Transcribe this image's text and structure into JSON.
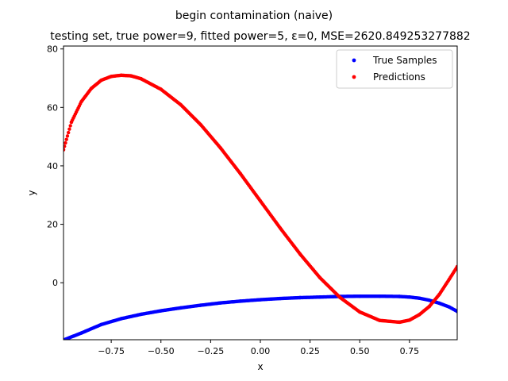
{
  "chart_data": {
    "type": "scatter",
    "suptitle": "begin contamination (naive)",
    "title": "testing set, true power=9, fitted power=5, ε=0, MSE=2620.849253277882",
    "xlabel": "x",
    "ylabel": "y",
    "xlim": [
      -0.99,
      0.99
    ],
    "ylim": [
      -19.5,
      81
    ],
    "xticks": [
      -0.75,
      -0.5,
      -0.25,
      0.0,
      0.25,
      0.5,
      0.75
    ],
    "xtick_labels": [
      "−0.75",
      "−0.50",
      "−0.25",
      "0.00",
      "0.25",
      "0.50",
      "0.75"
    ],
    "yticks": [
      0,
      20,
      40,
      60,
      80
    ],
    "ytick_labels": [
      "0",
      "20",
      "40",
      "60",
      "80"
    ],
    "grid": false,
    "legend_position": "top-right",
    "series": [
      {
        "name": "True Samples",
        "color": "#0000ff",
        "points": [
          [
            -0.99,
            -19.6
          ],
          [
            -0.9,
            -17.2
          ],
          [
            -0.8,
            -14.3
          ],
          [
            -0.7,
            -12.3
          ],
          [
            -0.6,
            -10.8
          ],
          [
            -0.5,
            -9.6
          ],
          [
            -0.4,
            -8.6
          ],
          [
            -0.3,
            -7.7
          ],
          [
            -0.2,
            -6.9
          ],
          [
            -0.1,
            -6.3
          ],
          [
            0.0,
            -5.8
          ],
          [
            0.1,
            -5.4
          ],
          [
            0.2,
            -5.1
          ],
          [
            0.3,
            -4.9
          ],
          [
            0.4,
            -4.7
          ],
          [
            0.5,
            -4.6
          ],
          [
            0.6,
            -4.6
          ],
          [
            0.7,
            -4.7
          ],
          [
            0.75,
            -4.9
          ],
          [
            0.8,
            -5.3
          ],
          [
            0.85,
            -6.0
          ],
          [
            0.9,
            -7.0
          ],
          [
            0.95,
            -8.3
          ],
          [
            0.99,
            -9.8
          ]
        ]
      },
      {
        "name": "Predictions",
        "color": "#ff0000",
        "points": [
          [
            -0.99,
            45.5
          ],
          [
            -0.95,
            55.0
          ],
          [
            -0.9,
            62.0
          ],
          [
            -0.85,
            66.5
          ],
          [
            -0.8,
            69.3
          ],
          [
            -0.75,
            70.6
          ],
          [
            -0.7,
            71.0
          ],
          [
            -0.65,
            70.8
          ],
          [
            -0.6,
            69.8
          ],
          [
            -0.5,
            66.2
          ],
          [
            -0.4,
            60.9
          ],
          [
            -0.3,
            54.1
          ],
          [
            -0.2,
            46.1
          ],
          [
            -0.1,
            37.3
          ],
          [
            0.0,
            28.0
          ],
          [
            0.1,
            18.7
          ],
          [
            0.2,
            9.8
          ],
          [
            0.3,
            1.7
          ],
          [
            0.4,
            -5.0
          ],
          [
            0.5,
            -10.0
          ],
          [
            0.6,
            -12.9
          ],
          [
            0.7,
            -13.5
          ],
          [
            0.75,
            -12.8
          ],
          [
            0.8,
            -10.9
          ],
          [
            0.85,
            -8.1
          ],
          [
            0.9,
            -4.0
          ],
          [
            0.95,
            1.2
          ],
          [
            0.99,
            5.5
          ]
        ]
      }
    ]
  }
}
